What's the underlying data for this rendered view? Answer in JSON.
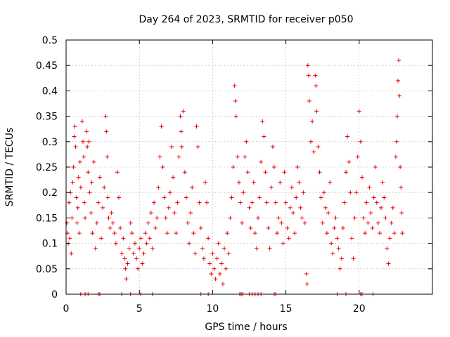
{
  "chart_data": {
    "type": "scatter",
    "title": "Day 264 of 2023, SRMTID for receiver p050",
    "xlabel": "GPS time / hours",
    "ylabel": "SRMTID / TECUs",
    "xlim": [
      0,
      25
    ],
    "ylim": [
      0,
      0.5
    ],
    "xticks": [
      0,
      5,
      10,
      15,
      20
    ],
    "xtick_labels": [
      "0",
      "5",
      "10",
      "15",
      "20"
    ],
    "yticks": [
      0,
      0.05,
      0.1,
      0.15,
      0.2,
      0.25,
      0.3,
      0.35,
      0.4,
      0.45,
      0.5
    ],
    "ytick_labels": [
      "0",
      "0.05",
      "0.1",
      "0.15",
      "0.2",
      "0.25",
      "0.3",
      "0.35",
      "0.4",
      "0.45",
      "0.5"
    ],
    "grid": true,
    "marker": "+",
    "color": "#ee0000",
    "series": [
      {
        "name": "SRMTID",
        "points": [
          [
            0.05,
            0.14
          ],
          [
            0.1,
            0.12
          ],
          [
            0.15,
            0.1
          ],
          [
            0.2,
            0.18
          ],
          [
            0.25,
            0.11
          ],
          [
            0.3,
            0.2
          ],
          [
            0.35,
            0.08
          ],
          [
            0.4,
            0.15
          ],
          [
            0.45,
            0.22
          ],
          [
            0.5,
            0.25
          ],
          [
            0.55,
            0.31
          ],
          [
            0.6,
            0.33
          ],
          [
            0.65,
            0.29
          ],
          [
            0.7,
            0.19
          ],
          [
            0.75,
            0.14
          ],
          [
            0.8,
            0.17
          ],
          [
            0.85,
            0.23
          ],
          [
            0.9,
            0.12
          ],
          [
            0.95,
            0.26
          ],
          [
            1.0,
            0.21
          ],
          [
            1.1,
            0.34
          ],
          [
            1.15,
            0.3
          ],
          [
            1.2,
            0.27
          ],
          [
            1.25,
            0.18
          ],
          [
            1.3,
            0.15
          ],
          [
            1.4,
            0.32
          ],
          [
            1.45,
            0.29
          ],
          [
            1.5,
            0.24
          ],
          [
            1.55,
            0.3
          ],
          [
            1.6,
            0.2
          ],
          [
            1.7,
            0.16
          ],
          [
            1.75,
            0.22
          ],
          [
            1.8,
            0.12
          ],
          [
            1.9,
            0.26
          ],
          [
            2.0,
            0.09
          ],
          [
            2.1,
            0.14
          ],
          [
            2.2,
            0.18
          ],
          [
            2.3,
            0.23
          ],
          [
            2.4,
            0.11
          ],
          [
            2.5,
            0.17
          ],
          [
            2.6,
            0.21
          ],
          [
            2.7,
            0.35
          ],
          [
            2.75,
            0.32
          ],
          [
            2.8,
            0.27
          ],
          [
            2.85,
            0.19
          ],
          [
            2.9,
            0.15
          ],
          [
            3.0,
            0.13
          ],
          [
            3.1,
            0.16
          ],
          [
            3.2,
            0.14
          ],
          [
            3.3,
            0.12
          ],
          [
            3.4,
            0.1
          ],
          [
            3.5,
            0.24
          ],
          [
            3.6,
            0.19
          ],
          [
            3.7,
            0.13
          ],
          [
            3.8,
            0.08
          ],
          [
            3.9,
            0.11
          ],
          [
            4.0,
            0.07
          ],
          [
            4.05,
            0.05
          ],
          [
            4.1,
            0.03
          ],
          [
            4.2,
            0.06
          ],
          [
            4.3,
            0.09
          ],
          [
            4.4,
            0.14
          ],
          [
            4.5,
            0.12
          ],
          [
            4.6,
            0.08
          ],
          [
            4.7,
            0.1
          ],
          [
            4.8,
            0.07
          ],
          [
            4.9,
            0.05
          ],
          [
            5.0,
            0.09
          ],
          [
            5.1,
            0.11
          ],
          [
            5.2,
            0.06
          ],
          [
            5.3,
            0.08
          ],
          [
            5.4,
            0.12
          ],
          [
            5.5,
            0.1
          ],
          [
            5.6,
            0.14
          ],
          [
            5.7,
            0.11
          ],
          [
            5.8,
            0.16
          ],
          [
            5.9,
            0.09
          ],
          [
            6.0,
            0.18
          ],
          [
            6.1,
            0.13
          ],
          [
            6.2,
            0.15
          ],
          [
            6.3,
            0.21
          ],
          [
            6.4,
            0.27
          ],
          [
            6.5,
            0.33
          ],
          [
            6.6,
            0.25
          ],
          [
            6.7,
            0.19
          ],
          [
            6.8,
            0.15
          ],
          [
            6.9,
            0.12
          ],
          [
            7.0,
            0.17
          ],
          [
            7.1,
            0.2
          ],
          [
            7.2,
            0.29
          ],
          [
            7.3,
            0.23
          ],
          [
            7.4,
            0.16
          ],
          [
            7.5,
            0.12
          ],
          [
            7.6,
            0.18
          ],
          [
            7.7,
            0.27
          ],
          [
            7.8,
            0.35
          ],
          [
            7.85,
            0.32
          ],
          [
            7.9,
            0.29
          ],
          [
            8.0,
            0.36
          ],
          [
            8.1,
            0.24
          ],
          [
            8.2,
            0.19
          ],
          [
            8.3,
            0.14
          ],
          [
            8.4,
            0.1
          ],
          [
            8.5,
            0.16
          ],
          [
            8.6,
            0.21
          ],
          [
            8.7,
            0.12
          ],
          [
            8.8,
            0.08
          ],
          [
            8.9,
            0.33
          ],
          [
            9.0,
            0.29
          ],
          [
            9.1,
            0.18
          ],
          [
            9.2,
            0.13
          ],
          [
            9.3,
            0.09
          ],
          [
            9.4,
            0.07
          ],
          [
            9.5,
            0.22
          ],
          [
            9.6,
            0.18
          ],
          [
            9.7,
            0.11
          ],
          [
            9.8,
            0.06
          ],
          [
            9.9,
            0.04
          ],
          [
            10.0,
            0.08
          ],
          [
            10.1,
            0.05
          ],
          [
            10.2,
            0.03
          ],
          [
            10.3,
            0.07
          ],
          [
            10.4,
            0.1
          ],
          [
            10.5,
            0.04
          ],
          [
            10.6,
            0.06
          ],
          [
            10.7,
            0.02
          ],
          [
            10.8,
            0.09
          ],
          [
            10.9,
            0.05
          ],
          [
            11.0,
            0.12
          ],
          [
            11.1,
            0.08
          ],
          [
            11.2,
            0.15
          ],
          [
            11.3,
            0.19
          ],
          [
            11.4,
            0.25
          ],
          [
            11.5,
            0.41
          ],
          [
            11.55,
            0.38
          ],
          [
            11.6,
            0.35
          ],
          [
            11.7,
            0.27
          ],
          [
            11.8,
            0.22
          ],
          [
            11.9,
            0.18
          ],
          [
            12.0,
            0.14
          ],
          [
            12.1,
            0.2
          ],
          [
            12.2,
            0.27
          ],
          [
            12.3,
            0.3
          ],
          [
            12.4,
            0.24
          ],
          [
            12.5,
            0.17
          ],
          [
            12.6,
            0.13
          ],
          [
            12.7,
            0.18
          ],
          [
            12.8,
            0.22
          ],
          [
            12.9,
            0.12
          ],
          [
            13.0,
            0.09
          ],
          [
            13.1,
            0.15
          ],
          [
            13.2,
            0.19
          ],
          [
            13.3,
            0.26
          ],
          [
            13.4,
            0.34
          ],
          [
            13.5,
            0.31
          ],
          [
            13.6,
            0.24
          ],
          [
            13.7,
            0.18
          ],
          [
            13.8,
            0.13
          ],
          [
            13.9,
            0.09
          ],
          [
            14.0,
            0.21
          ],
          [
            14.1,
            0.29
          ],
          [
            14.2,
            0.25
          ],
          [
            14.3,
            0.18
          ],
          [
            14.4,
            0.12
          ],
          [
            14.5,
            0.15
          ],
          [
            14.6,
            0.22
          ],
          [
            14.7,
            0.14
          ],
          [
            14.8,
            0.1
          ],
          [
            14.9,
            0.24
          ],
          [
            15.0,
            0.18
          ],
          [
            15.1,
            0.13
          ],
          [
            15.2,
            0.11
          ],
          [
            15.3,
            0.17
          ],
          [
            15.4,
            0.21
          ],
          [
            15.5,
            0.16
          ],
          [
            15.6,
            0.12
          ],
          [
            15.7,
            0.19
          ],
          [
            15.8,
            0.25
          ],
          [
            15.9,
            0.22
          ],
          [
            16.0,
            0.17
          ],
          [
            16.1,
            0.15
          ],
          [
            16.2,
            0.2
          ],
          [
            16.3,
            0.14
          ],
          [
            16.4,
            0.04
          ],
          [
            16.45,
            0.02
          ],
          [
            16.5,
            0.45
          ],
          [
            16.55,
            0.43
          ],
          [
            16.6,
            0.38
          ],
          [
            16.7,
            0.3
          ],
          [
            16.8,
            0.34
          ],
          [
            16.9,
            0.28
          ],
          [
            17.0,
            0.43
          ],
          [
            17.05,
            0.41
          ],
          [
            17.1,
            0.36
          ],
          [
            17.2,
            0.29
          ],
          [
            17.3,
            0.24
          ],
          [
            17.4,
            0.19
          ],
          [
            17.5,
            0.14
          ],
          [
            17.6,
            0.2
          ],
          [
            17.7,
            0.17
          ],
          [
            17.8,
            0.12
          ],
          [
            17.9,
            0.16
          ],
          [
            18.0,
            0.22
          ],
          [
            18.1,
            0.1
          ],
          [
            18.2,
            0.08
          ],
          [
            18.3,
            0.13
          ],
          [
            18.4,
            0.15
          ],
          [
            18.5,
            0.11
          ],
          [
            18.6,
            0.09
          ],
          [
            18.7,
            0.05
          ],
          [
            18.8,
            0.07
          ],
          [
            18.9,
            0.13
          ],
          [
            19.0,
            0.18
          ],
          [
            19.1,
            0.24
          ],
          [
            19.2,
            0.31
          ],
          [
            19.3,
            0.26
          ],
          [
            19.4,
            0.2
          ],
          [
            19.5,
            0.11
          ],
          [
            19.6,
            0.07
          ],
          [
            19.7,
            0.15
          ],
          [
            19.8,
            0.2
          ],
          [
            19.9,
            0.27
          ],
          [
            20.0,
            0.36
          ],
          [
            20.1,
            0.3
          ],
          [
            20.2,
            0.23
          ],
          [
            20.3,
            0.15
          ],
          [
            20.4,
            0.12
          ],
          [
            20.5,
            0.18
          ],
          [
            20.6,
            0.14
          ],
          [
            20.7,
            0.21
          ],
          [
            20.8,
            0.16
          ],
          [
            20.9,
            0.13
          ],
          [
            21.0,
            0.19
          ],
          [
            21.1,
            0.25
          ],
          [
            21.2,
            0.18
          ],
          [
            21.3,
            0.14
          ],
          [
            21.4,
            0.12
          ],
          [
            21.5,
            0.17
          ],
          [
            21.6,
            0.22
          ],
          [
            21.7,
            0.19
          ],
          [
            21.8,
            0.15
          ],
          [
            21.9,
            0.09
          ],
          [
            22.0,
            0.06
          ],
          [
            22.1,
            0.11
          ],
          [
            22.2,
            0.14
          ],
          [
            22.3,
            0.17
          ],
          [
            22.4,
            0.12
          ],
          [
            22.5,
            0.27
          ],
          [
            22.55,
            0.3
          ],
          [
            22.6,
            0.35
          ],
          [
            22.65,
            0.42
          ],
          [
            22.7,
            0.46
          ],
          [
            22.75,
            0.39
          ],
          [
            22.8,
            0.25
          ],
          [
            22.85,
            0.21
          ],
          [
            22.9,
            0.16
          ],
          [
            22.95,
            0.12
          ]
        ]
      }
    ],
    "zero_points_x": [
      1.0,
      1.3,
      1.5,
      2.2,
      2.3,
      3.8,
      4.4,
      5.1,
      5.9,
      9.2,
      9.7,
      11.85,
      11.95,
      12.05,
      12.5,
      12.7,
      12.9,
      13.1,
      13.3,
      14.2,
      14.3,
      18.5,
      19.1,
      20.1,
      20.2,
      20.95
    ]
  }
}
